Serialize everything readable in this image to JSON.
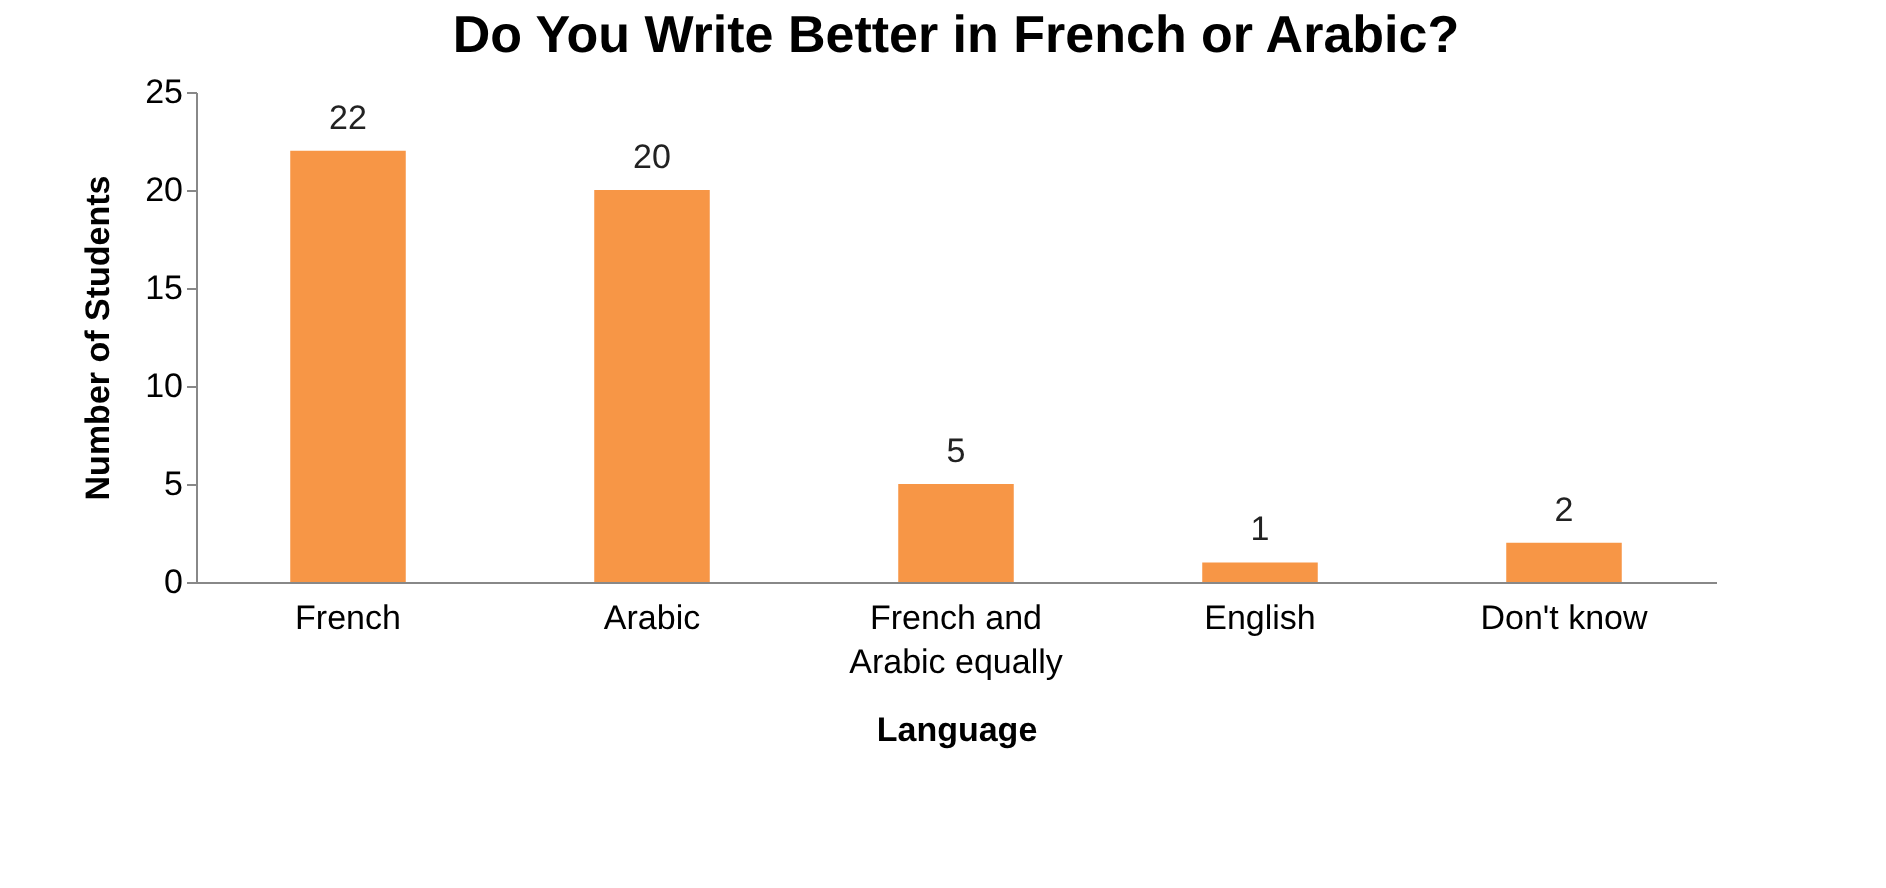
{
  "chart_data": {
    "type": "bar",
    "title": "Do You Write Better in French or Arabic?",
    "xlabel": "Language",
    "ylabel": "Number of Students",
    "categories": [
      "French",
      "Arabic",
      "French and Arabic equally",
      "English",
      "Don't know"
    ],
    "values": [
      22,
      20,
      5,
      1,
      2
    ],
    "color": "#f79646",
    "ylim": [
      0,
      25
    ],
    "yticks": [
      0,
      5,
      10,
      15,
      20,
      25
    ],
    "grid": false,
    "data_labels": true
  }
}
